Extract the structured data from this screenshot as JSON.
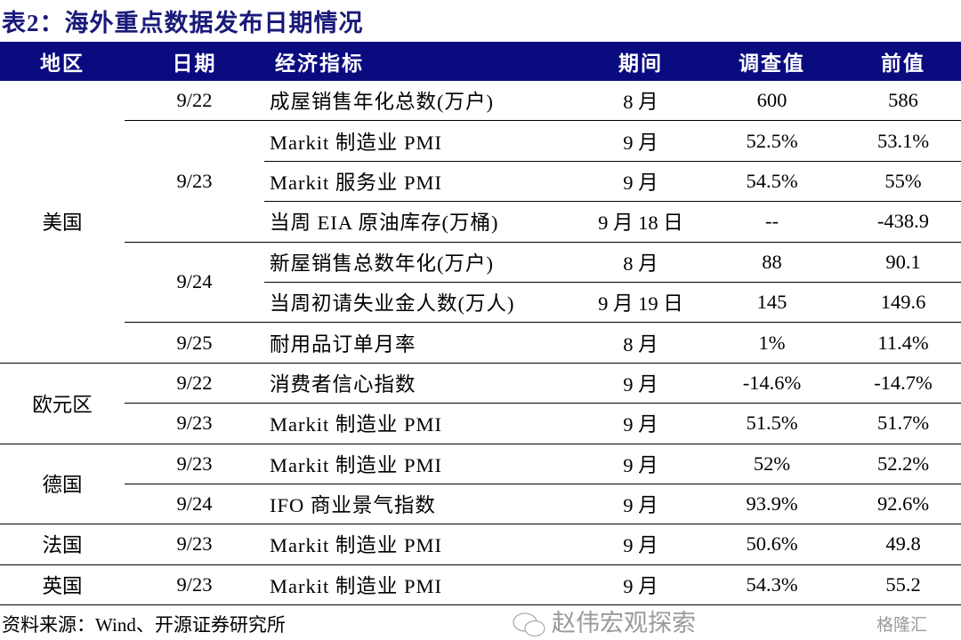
{
  "title": "表2：海外重点数据发布日期情况",
  "header": {
    "region": "地区",
    "date": "日期",
    "indicator": "经济指标",
    "period": "期间",
    "survey": "调查值",
    "previous": "前值"
  },
  "colors": {
    "header_bg": "#0b0b80",
    "title": "#1a1a7a"
  },
  "regions": [
    {
      "name": "美国",
      "dates": [
        {
          "date": "9/22",
          "rows": [
            {
              "indicator": "成屋销售年化总数(万户)",
              "period": "8 月",
              "survey": "600",
              "previous": "586"
            }
          ]
        },
        {
          "date": "9/23",
          "rows": [
            {
              "indicator": "Markit 制造业 PMI",
              "period": "9 月",
              "survey": "52.5%",
              "previous": "53.1%"
            },
            {
              "indicator": "Markit 服务业 PMI",
              "period": "9 月",
              "survey": "54.5%",
              "previous": "55%"
            },
            {
              "indicator": "当周 EIA 原油库存(万桶)",
              "period": "9 月 18 日",
              "survey": "--",
              "previous": "-438.9"
            }
          ]
        },
        {
          "date": "9/24",
          "rows": [
            {
              "indicator": "新屋销售总数年化(万户)",
              "period": "8 月",
              "survey": "88",
              "previous": "90.1"
            },
            {
              "indicator": "当周初请失业金人数(万人)",
              "period": "9 月 19 日",
              "survey": "145",
              "previous": "149.6"
            }
          ]
        },
        {
          "date": "9/25",
          "rows": [
            {
              "indicator": "耐用品订单月率",
              "period": "8 月",
              "survey": "1%",
              "previous": "11.4%"
            }
          ]
        }
      ]
    },
    {
      "name": "欧元区",
      "dates": [
        {
          "date": "9/22",
          "rows": [
            {
              "indicator": "消费者信心指数",
              "period": "9 月",
              "survey": "-14.6%",
              "previous": "-14.7%"
            }
          ]
        },
        {
          "date": "9/23",
          "rows": [
            {
              "indicator": "Markit 制造业 PMI",
              "period": "9 月",
              "survey": "51.5%",
              "previous": "51.7%"
            }
          ]
        }
      ]
    },
    {
      "name": "德国",
      "dates": [
        {
          "date": "9/23",
          "rows": [
            {
              "indicator": "Markit 制造业 PMI",
              "period": "9 月",
              "survey": "52%",
              "previous": "52.2%"
            }
          ]
        },
        {
          "date": "9/24",
          "rows": [
            {
              "indicator": "IFO 商业景气指数",
              "period": "9 月",
              "survey": "93.9%",
              "previous": "92.6%"
            }
          ]
        }
      ]
    },
    {
      "name": "法国",
      "dates": [
        {
          "date": "9/23",
          "rows": [
            {
              "indicator": "Markit 制造业 PMI",
              "period": "9 月",
              "survey": "50.6%",
              "previous": "49.8"
            }
          ]
        }
      ]
    },
    {
      "name": "英国",
      "dates": [
        {
          "date": "9/23",
          "rows": [
            {
              "indicator": "Markit 制造业 PMI",
              "period": "9 月",
              "survey": "54.3%",
              "previous": "55.2"
            }
          ]
        }
      ]
    }
  ],
  "source": "资料来源：Wind、开源证券研究所",
  "watermark": "赵伟宏观探索",
  "watermark_logo": "格隆汇"
}
